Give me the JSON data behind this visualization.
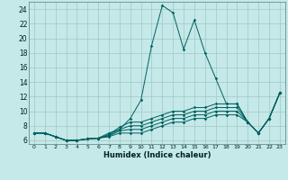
{
  "xlabel": "Humidex (Indice chaleur)",
  "xlim": [
    -0.5,
    23.5
  ],
  "ylim": [
    5.5,
    25
  ],
  "xticks": [
    0,
    1,
    2,
    3,
    4,
    5,
    6,
    7,
    8,
    9,
    10,
    11,
    12,
    13,
    14,
    15,
    16,
    17,
    18,
    19,
    20,
    21,
    22,
    23
  ],
  "yticks": [
    6,
    8,
    10,
    12,
    14,
    16,
    18,
    20,
    22,
    24
  ],
  "bg_color": "#c5e8e8",
  "line_color": "#006060",
  "grid_color": "#a0c8c8",
  "lines": [
    {
      "x": [
        0,
        1,
        2,
        3,
        4,
        5,
        6,
        7,
        8,
        9,
        10,
        11,
        12,
        13,
        14,
        15,
        16,
        17,
        18,
        19,
        20,
        21,
        22,
        23
      ],
      "y": [
        7.0,
        7.0,
        6.5,
        6.0,
        6.0,
        6.2,
        6.3,
        7.0,
        7.5,
        9.0,
        11.5,
        19.0,
        24.5,
        23.5,
        18.5,
        22.5,
        18.0,
        14.5,
        11.0,
        11.0,
        8.5,
        7.0,
        9.0,
        12.5
      ]
    },
    {
      "x": [
        0,
        1,
        2,
        3,
        4,
        5,
        6,
        7,
        8,
        9,
        10,
        11,
        12,
        13,
        14,
        15,
        16,
        17,
        18,
        19,
        20,
        21,
        22,
        23
      ],
      "y": [
        7.0,
        7.0,
        6.5,
        6.0,
        6.0,
        6.2,
        6.3,
        6.8,
        7.8,
        8.5,
        8.5,
        9.0,
        9.5,
        10.0,
        10.0,
        10.5,
        10.5,
        11.0,
        11.0,
        11.0,
        8.5,
        7.0,
        9.0,
        12.5
      ]
    },
    {
      "x": [
        0,
        1,
        2,
        3,
        4,
        5,
        6,
        7,
        8,
        9,
        10,
        11,
        12,
        13,
        14,
        15,
        16,
        17,
        18,
        19,
        20,
        21,
        22,
        23
      ],
      "y": [
        7.0,
        7.0,
        6.5,
        6.0,
        6.0,
        6.2,
        6.3,
        6.7,
        7.5,
        8.0,
        8.0,
        8.5,
        9.0,
        9.5,
        9.5,
        10.0,
        10.0,
        10.5,
        10.5,
        10.5,
        8.5,
        7.0,
        9.0,
        12.5
      ]
    },
    {
      "x": [
        0,
        1,
        2,
        3,
        4,
        5,
        6,
        7,
        8,
        9,
        10,
        11,
        12,
        13,
        14,
        15,
        16,
        17,
        18,
        19,
        20,
        21,
        22,
        23
      ],
      "y": [
        7.0,
        7.0,
        6.5,
        6.0,
        6.0,
        6.2,
        6.3,
        6.6,
        7.3,
        7.5,
        7.5,
        8.0,
        8.5,
        9.0,
        9.0,
        9.5,
        9.5,
        10.0,
        10.0,
        10.0,
        8.5,
        7.0,
        9.0,
        12.5
      ]
    },
    {
      "x": [
        0,
        1,
        2,
        3,
        4,
        5,
        6,
        7,
        8,
        9,
        10,
        11,
        12,
        13,
        14,
        15,
        16,
        17,
        18,
        19,
        20,
        21,
        22,
        23
      ],
      "y": [
        7.0,
        7.0,
        6.5,
        6.0,
        6.0,
        6.2,
        6.3,
        6.5,
        7.0,
        7.0,
        7.0,
        7.5,
        8.0,
        8.5,
        8.5,
        9.0,
        9.0,
        9.5,
        9.5,
        9.5,
        8.5,
        7.0,
        9.0,
        12.5
      ]
    }
  ]
}
